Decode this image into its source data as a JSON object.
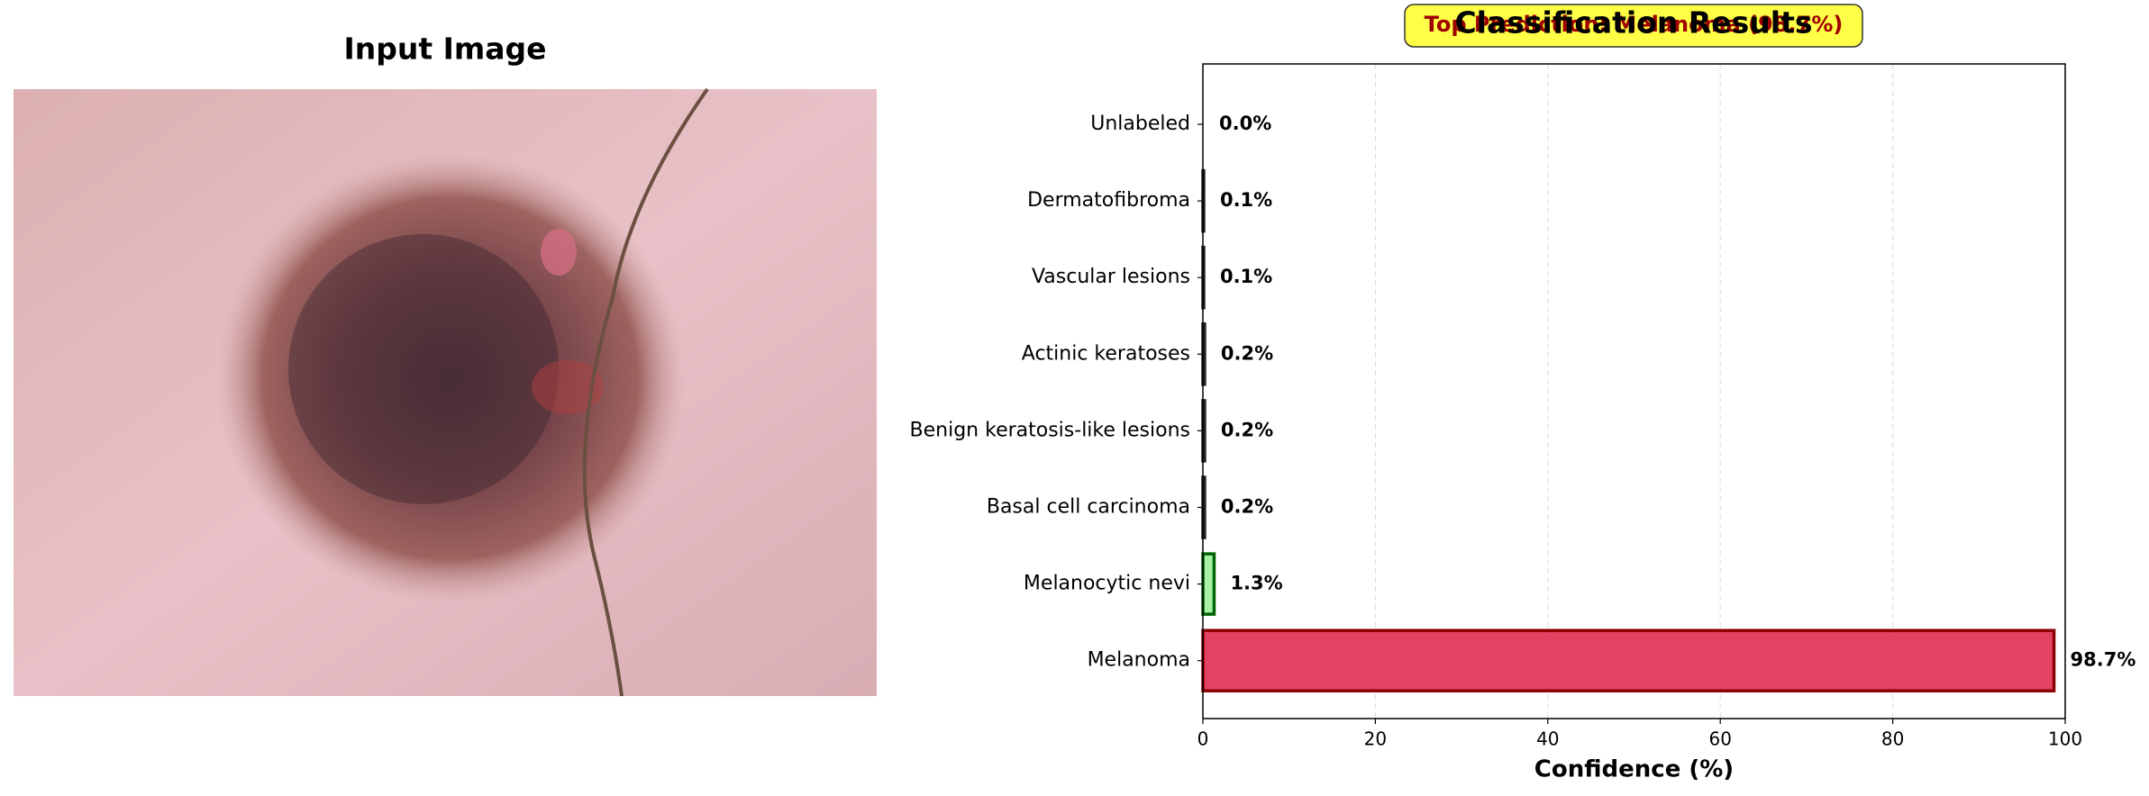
{
  "image_panel": {
    "title": "Input Image"
  },
  "chart_data": {
    "type": "barh",
    "title": "Classification Results",
    "annotation": "Top Prediction: Melanoma (98.7%)",
    "xlabel": "Confidence (%)",
    "categories": [
      "Unlabeled",
      "Dermatofibroma",
      "Vascular lesions",
      "Actinic keratoses",
      "Benign keratosis-like lesions",
      "Basal cell carcinoma",
      "Melanocytic nevi",
      "Melanoma"
    ],
    "values": [
      0.0,
      0.1,
      0.1,
      0.2,
      0.2,
      0.2,
      1.3,
      98.7
    ],
    "value_labels": [
      "0.0%",
      "0.1%",
      "0.1%",
      "0.2%",
      "0.2%",
      "0.2%",
      "1.3%",
      "98.7%"
    ],
    "colors": [
      "#4682b4",
      "#4682b4",
      "#4682b4",
      "#4682b4",
      "#4682b4",
      "#4682b4",
      "#90ee90",
      "#dc143c"
    ],
    "edgecolors": [
      "#222222",
      "#222222",
      "#222222",
      "#222222",
      "#222222",
      "#222222",
      "#006400",
      "#8b0000"
    ],
    "xlim": [
      0,
      100
    ],
    "xticks": [
      0,
      20,
      40,
      60,
      80,
      100
    ],
    "grid": true
  }
}
